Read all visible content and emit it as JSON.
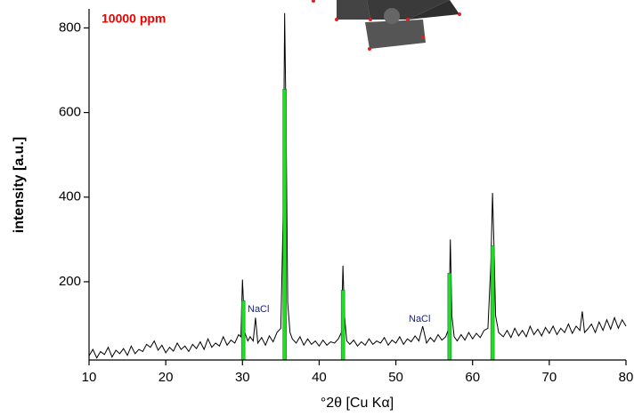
{
  "chart_data": {
    "type": "line",
    "x_label": "°2θ [Cu Kα]",
    "y_label": "intensity [a.u.]",
    "annotations": [
      "10000 ppm",
      "NaCl",
      "NaCl"
    ],
    "xlim": [
      10,
      80
    ],
    "xticks": [
      10,
      20,
      30,
      40,
      50,
      60,
      70,
      80
    ],
    "ylim": [
      15,
      845
    ],
    "yticks": [
      200,
      400,
      600,
      800
    ],
    "series": [
      {
        "color": "#000000",
        "x": [
          10,
          10.5,
          11,
          11.5,
          12,
          12.5,
          13,
          13.5,
          14,
          14.5,
          15,
          15.5,
          16,
          16.5,
          17,
          17.5,
          18,
          18.5,
          19,
          19.5,
          20,
          20.5,
          21,
          21.5,
          22,
          22.5,
          23,
          23.5,
          24,
          24.5,
          25,
          25.5,
          26,
          26.5,
          27,
          27.5,
          28,
          28.5,
          29,
          29.5,
          29.8,
          30,
          30.3,
          30.7,
          31,
          31.4,
          31.7,
          32,
          32.5,
          33,
          33.5,
          34,
          34.5,
          35,
          35.3,
          35.5,
          35.7,
          35.9,
          36.2,
          36.5,
          37,
          37.5,
          38,
          38.5,
          39,
          39.5,
          40,
          40.5,
          41,
          41.5,
          42,
          42.5,
          42.9,
          43.1,
          43.3,
          43.6,
          44,
          44.5,
          45,
          45.5,
          46,
          46.5,
          47,
          47.5,
          48,
          48.5,
          49,
          49.5,
          50,
          50.5,
          51,
          51.5,
          52,
          52.5,
          53,
          53.5,
          54,
          54.5,
          55,
          55.5,
          56,
          56.5,
          56.9,
          57.1,
          57.3,
          57.6,
          58,
          58.5,
          59,
          59.5,
          60,
          60.5,
          61,
          61.5,
          62,
          62.4,
          62.6,
          62.8,
          63,
          63.4,
          64,
          64.5,
          65,
          65.5,
          66,
          66.5,
          67,
          67.5,
          68,
          68.5,
          69,
          69.5,
          70,
          70.5,
          71,
          71.5,
          72,
          72.5,
          73,
          73.5,
          74,
          74.3,
          74.6,
          75,
          75.5,
          76,
          76.5,
          77,
          77.5,
          78,
          78.5,
          79,
          79.5,
          80
        ],
        "values": [
          25,
          40,
          20,
          35,
          28,
          45,
          22,
          38,
          30,
          42,
          26,
          48,
          30,
          40,
          35,
          52,
          45,
          60,
          38,
          50,
          32,
          45,
          36,
          55,
          40,
          48,
          35,
          52,
          42,
          58,
          40,
          65,
          45,
          55,
          48,
          70,
          50,
          62,
          55,
          75,
          70,
          205,
          80,
          60,
          70,
          60,
          115,
          55,
          68,
          50,
          72,
          58,
          80,
          90,
          350,
          835,
          550,
          150,
          80,
          65,
          55,
          70,
          50,
          65,
          52,
          60,
          48,
          62,
          50,
          58,
          55,
          65,
          80,
          238,
          120,
          60,
          52,
          62,
          48,
          58,
          50,
          65,
          52,
          60,
          55,
          68,
          50,
          62,
          55,
          70,
          52,
          65,
          58,
          72,
          60,
          95,
          55,
          68,
          58,
          75,
          62,
          70,
          90,
          300,
          120,
          70,
          60,
          75,
          62,
          80,
          65,
          78,
          68,
          85,
          90,
          250,
          410,
          280,
          120,
          80,
          70,
          85,
          68,
          90,
          72,
          85,
          70,
          95,
          75,
          88,
          72,
          92,
          78,
          95,
          75,
          90,
          80,
          100,
          78,
          95,
          85,
          130,
          80,
          88,
          100,
          80,
          105,
          85,
          110,
          88,
          115,
          90,
          110,
          95
        ]
      },
      {
        "color": "#22dd22",
        "style": "sticks",
        "x": [
          30.1,
          35.5,
          43.1,
          57.0,
          62.6
        ],
        "values": [
          155,
          655,
          180,
          220,
          285
        ]
      }
    ]
  }
}
